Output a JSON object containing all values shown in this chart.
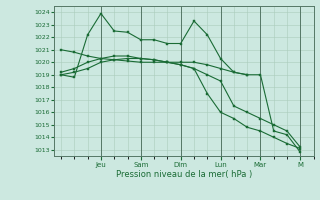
{
  "bg_color": "#cce8e0",
  "grid_color": "#aaccbb",
  "line_color": "#1a6b35",
  "xlabel": "Pression niveau de la mer( hPa )",
  "ylim": [
    1012.5,
    1024.5
  ],
  "yticks": [
    1013,
    1014,
    1015,
    1016,
    1017,
    1018,
    1019,
    1020,
    1021,
    1022,
    1023,
    1024
  ],
  "day_labels": [
    "Jeu",
    "Sam",
    "Dim",
    "Lun",
    "Mar",
    "M"
  ],
  "day_positions": [
    3.0,
    6.0,
    9.0,
    12.0,
    15.0,
    18.0
  ],
  "xlim": [
    -0.5,
    19.0
  ],
  "series": [
    {
      "x": [
        0,
        1,
        2,
        3,
        4,
        5,
        6,
        7,
        8,
        9,
        10,
        11,
        12,
        13,
        14,
        15,
        16
      ],
      "y": [
        1019.0,
        1018.8,
        1022.2,
        1023.9,
        1022.5,
        1022.4,
        1021.8,
        1021.8,
        1021.5,
        1021.5,
        1023.3,
        1022.2,
        1020.3,
        1019.2,
        1019.0,
        null,
        null
      ]
    },
    {
      "x": [
        0,
        1,
        2,
        3,
        4,
        5,
        6,
        7,
        8,
        9,
        10,
        11,
        12,
        13,
        14,
        15,
        16,
        17,
        18
      ],
      "y": [
        1021.0,
        1020.8,
        1020.5,
        1020.3,
        1020.2,
        1020.1,
        1020.0,
        1020.0,
        1020.0,
        1020.0,
        1020.0,
        1019.8,
        1019.5,
        1019.2,
        1019.0,
        1019.0,
        1014.5,
        1014.2,
        1012.8
      ]
    },
    {
      "x": [
        0,
        1,
        2,
        3,
        4,
        5,
        6,
        7,
        8,
        9,
        10,
        11,
        12,
        13,
        14,
        15,
        16,
        17,
        18
      ],
      "y": [
        1019.0,
        1019.2,
        1019.5,
        1020.0,
        1020.2,
        1020.3,
        1020.3,
        1020.2,
        1020.0,
        1019.8,
        1019.5,
        1017.5,
        1016.0,
        1015.5,
        1014.8,
        1014.5,
        1014.0,
        1013.5,
        1013.1
      ]
    },
    {
      "x": [
        0,
        1,
        2,
        3,
        4,
        5,
        6,
        7,
        8,
        9,
        10,
        11,
        12,
        13,
        14,
        15,
        16,
        17,
        18
      ],
      "y": [
        1019.2,
        1019.5,
        1020.0,
        1020.3,
        1020.5,
        1020.5,
        1020.3,
        1020.2,
        1020.0,
        1019.8,
        1019.5,
        1019.0,
        1018.5,
        1016.5,
        1016.0,
        1015.5,
        1015.0,
        1014.5,
        1013.2
      ]
    }
  ]
}
